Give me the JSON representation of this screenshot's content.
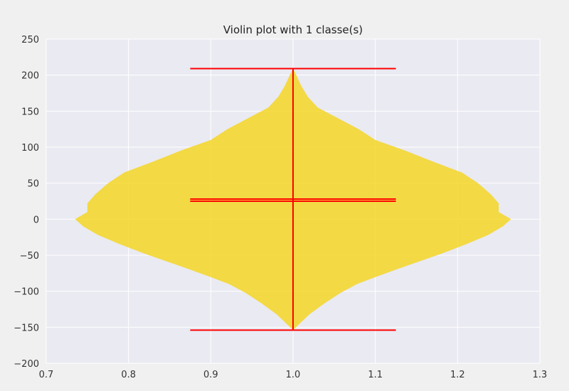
{
  "chart_data": {
    "type": "violin",
    "title": "Violin plot with 1 classe(s)",
    "xlabel": "",
    "ylabel": "",
    "xlim": [
      0.7,
      1.3
    ],
    "ylim": [
      -200,
      250
    ],
    "xticks": [
      0.7,
      0.8,
      0.9,
      1.0,
      1.1,
      1.2,
      1.3
    ],
    "xtick_labels": [
      "0.7",
      "0.8",
      "0.9",
      "1.0",
      "1.1",
      "1.2",
      "1.3"
    ],
    "yticks": [
      -200,
      -150,
      -100,
      -50,
      0,
      50,
      100,
      150,
      200,
      250
    ],
    "ytick_labels": [
      "−200",
      "−150",
      "−100",
      "−50",
      "0",
      "50",
      "100",
      "150",
      "200",
      "250"
    ],
    "grid": true,
    "series": [
      {
        "position": 1.0,
        "min": -154,
        "max": 209,
        "mean": 28,
        "median": 25,
        "extrema_halfwidth": 0.125,
        "density_profile": [
          {
            "y": -154,
            "w": 0.0
          },
          {
            "y": -145,
            "w": 0.008
          },
          {
            "y": -132,
            "w": 0.02
          },
          {
            "y": -117,
            "w": 0.038
          },
          {
            "y": -102,
            "w": 0.058
          },
          {
            "y": -90,
            "w": 0.078
          },
          {
            "y": -80,
            "w": 0.101
          },
          {
            "y": -70,
            "w": 0.125
          },
          {
            "y": -60,
            "w": 0.15
          },
          {
            "y": -48,
            "w": 0.18
          },
          {
            "y": -35,
            "w": 0.21
          },
          {
            "y": -22,
            "w": 0.237
          },
          {
            "y": -10,
            "w": 0.255
          },
          {
            "y": 0,
            "w": 0.265
          },
          {
            "y": 10,
            "w": 0.25
          },
          {
            "y": 22,
            "w": 0.25
          },
          {
            "y": 35,
            "w": 0.24
          },
          {
            "y": 50,
            "w": 0.225
          },
          {
            "y": 65,
            "w": 0.205
          },
          {
            "y": 80,
            "w": 0.17
          },
          {
            "y": 95,
            "w": 0.137
          },
          {
            "y": 110,
            "w": 0.1
          },
          {
            "y": 125,
            "w": 0.08
          },
          {
            "y": 140,
            "w": 0.055
          },
          {
            "y": 155,
            "w": 0.03
          },
          {
            "y": 170,
            "w": 0.018
          },
          {
            "y": 185,
            "w": 0.01
          },
          {
            "y": 200,
            "w": 0.004
          },
          {
            "y": 209,
            "w": 0.0
          }
        ]
      }
    ]
  },
  "colors": {
    "body": "#f5d626",
    "line": "#ff0000",
    "plot_background": "#eaeaf2",
    "grid": "#ffffff",
    "figure_background": "#f0f0f0"
  }
}
